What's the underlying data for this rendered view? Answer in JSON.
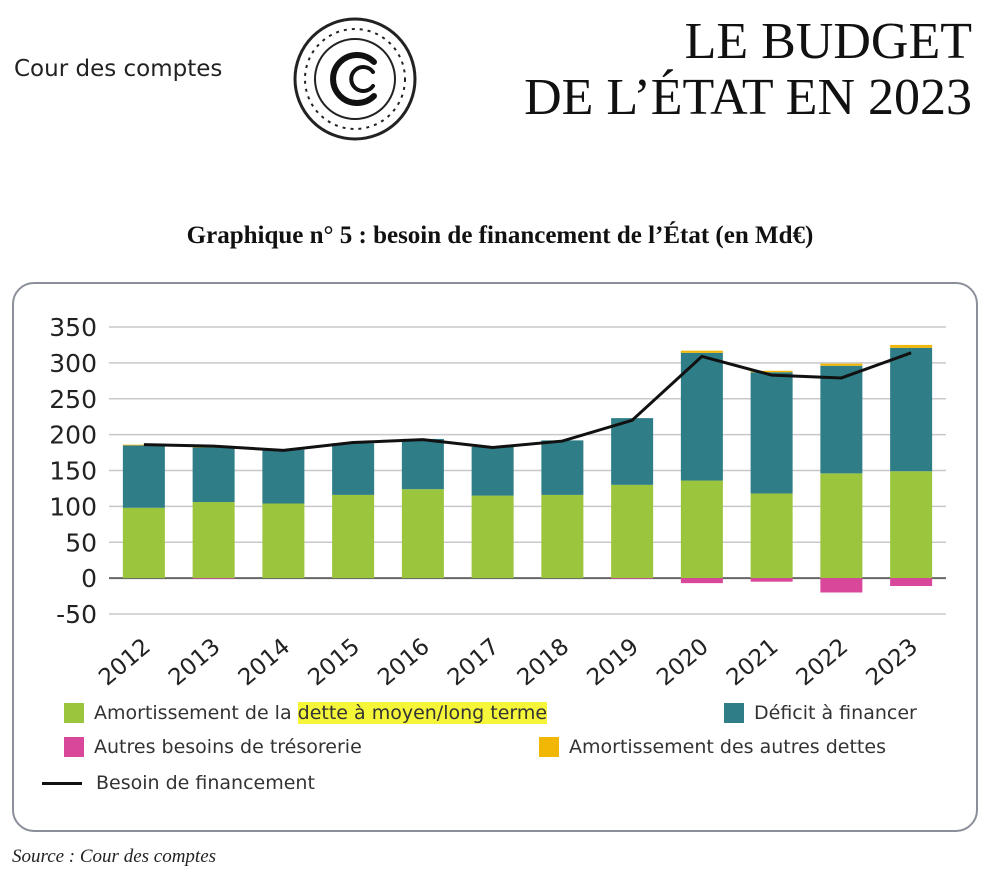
{
  "header": {
    "organization": "Cour des comptes",
    "title_line1": "LE BUDGET",
    "title_line2": "DE L’ÉTAT EN 2023",
    "logo_letters": "CC"
  },
  "source": "Source : Cour des comptes",
  "chart_data": {
    "type": "bar",
    "stacked": true,
    "title": "Graphique n° 5 : besoin de financement de l’État (en Md€)",
    "categories": [
      "2012",
      "2013",
      "2014",
      "2015",
      "2016",
      "2017",
      "2018",
      "2019",
      "2020",
      "2021",
      "2022",
      "2023"
    ],
    "ylim": [
      -50,
      350
    ],
    "yticks": [
      350,
      300,
      250,
      200,
      150,
      100,
      50,
      0,
      -50
    ],
    "grid": true,
    "legend_position": "bottom",
    "series": [
      {
        "name": "Amortissement de la dette à moyen/long terme",
        "type": "bar",
        "color": "#9bc53d",
        "values": [
          98,
          106,
          104,
          116,
          124,
          115,
          116,
          130,
          136,
          118,
          146,
          149
        ]
      },
      {
        "name": "Déficit à financer",
        "type": "bar",
        "color": "#2f7e87",
        "values": [
          87,
          76,
          75,
          72,
          70,
          68,
          76,
          93,
          178,
          169,
          150,
          172
        ]
      },
      {
        "name": "Autres besoins de trésorerie",
        "type": "bar",
        "color": "#d9479a",
        "values": [
          0,
          -1,
          0,
          0,
          0,
          0,
          0,
          -1,
          -7,
          -5,
          -20,
          -11
        ]
      },
      {
        "name": "Amortissement des autres dettes",
        "type": "bar",
        "color": "#f2b705",
        "values": [
          1,
          1,
          0,
          0,
          0,
          0,
          0,
          0,
          3,
          2,
          3,
          4
        ]
      },
      {
        "name": "Besoin de financement",
        "type": "line",
        "color": "#111111",
        "values": [
          186,
          184,
          178,
          189,
          193,
          182,
          191,
          220,
          309,
          283,
          279,
          314
        ]
      }
    ],
    "legend_highlight": "dette à moyen/long terme"
  },
  "legend": {
    "green_prefix": "Amortissement de la ",
    "green_highlight": "dette à moyen/long terme"
  }
}
